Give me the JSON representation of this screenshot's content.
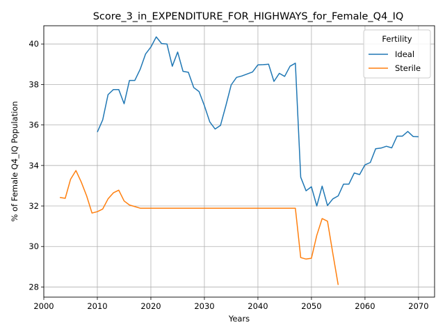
{
  "chart_data": {
    "type": "line",
    "title": "Score_3_in_EXPENDITURE_FOR_HIGHWAYS_for_Female_Q4_IQ",
    "xlabel": "Years",
    "ylabel": "% of Female Q4_IQ Population",
    "xlim": [
      2000,
      2073
    ],
    "ylim": [
      27.5,
      40.9
    ],
    "xticks": [
      2000,
      2010,
      2020,
      2030,
      2040,
      2050,
      2060,
      2070
    ],
    "yticks": [
      28,
      30,
      32,
      34,
      36,
      38,
      40
    ],
    "grid": true,
    "legend": {
      "title": "Fertility",
      "placement": "top-right"
    },
    "colors": {
      "Ideal": "#1f77b4",
      "Sterile": "#ff7f0e"
    },
    "series": [
      {
        "name": "Ideal",
        "points": [
          [
            2010,
            35.65
          ],
          [
            2011,
            36.25
          ],
          [
            2012,
            37.5
          ],
          [
            2013,
            37.75
          ],
          [
            2014,
            37.75
          ],
          [
            2015,
            37.05
          ],
          [
            2016,
            38.2
          ],
          [
            2017,
            38.2
          ],
          [
            2018,
            38.75
          ],
          [
            2019,
            39.5
          ],
          [
            2020,
            39.85
          ],
          [
            2021,
            40.35
          ],
          [
            2022,
            40.02
          ],
          [
            2023,
            40.0
          ],
          [
            2024,
            38.9
          ],
          [
            2025,
            39.6
          ],
          [
            2026,
            38.65
          ],
          [
            2027,
            38.6
          ],
          [
            2028,
            37.85
          ],
          [
            2029,
            37.65
          ],
          [
            2030,
            36.95
          ],
          [
            2031,
            36.15
          ],
          [
            2032,
            35.8
          ],
          [
            2033,
            35.98
          ],
          [
            2034,
            36.95
          ],
          [
            2035,
            37.98
          ],
          [
            2036,
            38.35
          ],
          [
            2037,
            38.42
          ],
          [
            2038,
            38.52
          ],
          [
            2039,
            38.62
          ],
          [
            2040,
            38.97
          ],
          [
            2041,
            38.98
          ],
          [
            2042,
            39.0
          ],
          [
            2043,
            38.15
          ],
          [
            2044,
            38.55
          ],
          [
            2045,
            38.4
          ],
          [
            2046,
            38.9
          ],
          [
            2047,
            39.05
          ],
          [
            2048,
            33.42
          ],
          [
            2049,
            32.75
          ],
          [
            2050,
            32.95
          ],
          [
            2051,
            32.0
          ],
          [
            2052,
            32.98
          ],
          [
            2053,
            32.02
          ],
          [
            2054,
            32.35
          ],
          [
            2055,
            32.5
          ],
          [
            2056,
            33.08
          ],
          [
            2057,
            33.08
          ],
          [
            2058,
            33.63
          ],
          [
            2059,
            33.55
          ],
          [
            2060,
            34.03
          ],
          [
            2061,
            34.15
          ],
          [
            2062,
            34.83
          ],
          [
            2063,
            34.86
          ],
          [
            2064,
            34.95
          ],
          [
            2065,
            34.87
          ],
          [
            2066,
            35.45
          ],
          [
            2067,
            35.45
          ],
          [
            2068,
            35.68
          ],
          [
            2069,
            35.43
          ],
          [
            2070,
            35.42
          ]
        ]
      },
      {
        "name": "Sterile",
        "points": [
          [
            2003,
            32.42
          ],
          [
            2004,
            32.38
          ],
          [
            2005,
            33.32
          ],
          [
            2006,
            33.75
          ],
          [
            2007,
            33.18
          ],
          [
            2008,
            32.5
          ],
          [
            2009,
            31.65
          ],
          [
            2010,
            31.72
          ],
          [
            2011,
            31.85
          ],
          [
            2012,
            32.35
          ],
          [
            2013,
            32.65
          ],
          [
            2014,
            32.78
          ],
          [
            2015,
            32.25
          ],
          [
            2016,
            32.05
          ],
          [
            2017,
            31.97
          ],
          [
            2018,
            31.89
          ],
          [
            2019,
            31.89
          ],
          [
            2020,
            31.89
          ],
          [
            2021,
            31.89
          ],
          [
            2022,
            31.89
          ],
          [
            2023,
            31.89
          ],
          [
            2024,
            31.89
          ],
          [
            2025,
            31.89
          ],
          [
            2026,
            31.89
          ],
          [
            2027,
            31.89
          ],
          [
            2028,
            31.89
          ],
          [
            2029,
            31.89
          ],
          [
            2030,
            31.89
          ],
          [
            2031,
            31.89
          ],
          [
            2032,
            31.89
          ],
          [
            2033,
            31.89
          ],
          [
            2034,
            31.89
          ],
          [
            2035,
            31.89
          ],
          [
            2036,
            31.89
          ],
          [
            2037,
            31.89
          ],
          [
            2038,
            31.89
          ],
          [
            2039,
            31.89
          ],
          [
            2040,
            31.89
          ],
          [
            2041,
            31.89
          ],
          [
            2042,
            31.89
          ],
          [
            2043,
            31.89
          ],
          [
            2044,
            31.89
          ],
          [
            2045,
            31.89
          ],
          [
            2046,
            31.89
          ],
          [
            2047,
            31.89
          ],
          [
            2048,
            29.45
          ],
          [
            2049,
            29.38
          ],
          [
            2050,
            29.42
          ],
          [
            2051,
            30.55
          ],
          [
            2052,
            31.38
          ],
          [
            2053,
            31.25
          ],
          [
            2054,
            29.65
          ],
          [
            2055,
            28.1
          ]
        ]
      }
    ]
  }
}
